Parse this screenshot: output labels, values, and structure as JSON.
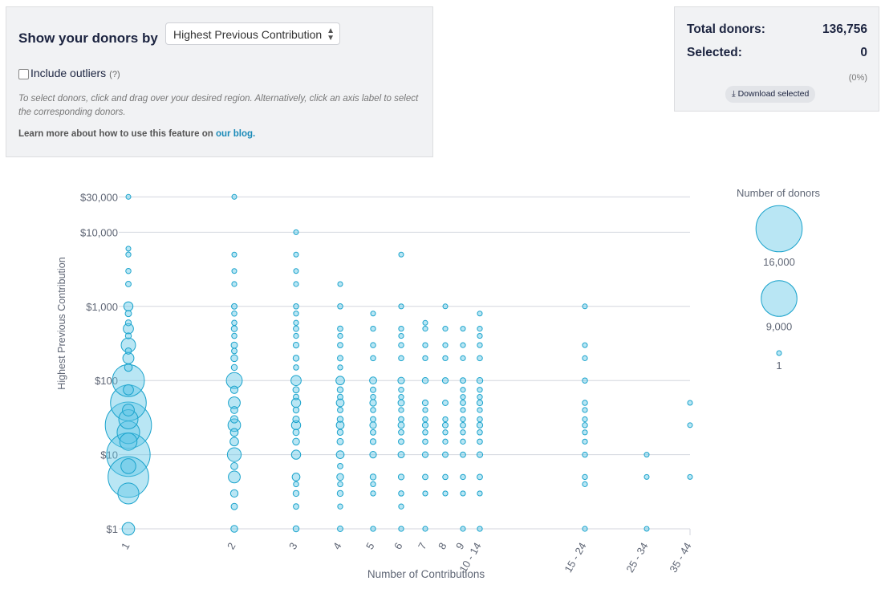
{
  "controls": {
    "title": "Show your donors by",
    "select_value": "Highest Previous Contribution",
    "outliers_label": "Include outliers",
    "outliers_help": "(?)",
    "hint": "To select donors, click and drag over your desired region. Alternatively, click an axis label to select the corresponding donors.",
    "learn_prefix": "Learn more about how to use this feature on ",
    "learn_link": "our blog."
  },
  "summary": {
    "total_label": "Total donors:",
    "total_value": "136,756",
    "selected_label": "Selected:",
    "selected_value": "0",
    "selected_pct": "(0%)",
    "download_label": "Download selected"
  },
  "chart_data": {
    "type": "scatter",
    "xlabel": "Number of Contributions",
    "ylabel": "Highest Previous Contribution",
    "categories": [
      "1",
      "2",
      "3",
      "4",
      "5",
      "6",
      "7",
      "8",
      "9",
      "10 - 14",
      "15 - 24",
      "25 - 34",
      "35 - 44"
    ],
    "y_ticks": [
      {
        "v": 1,
        "label": "$1"
      },
      {
        "v": 10,
        "label": "$10"
      },
      {
        "v": 100,
        "label": "$100"
      },
      {
        "v": 1000,
        "label": "$1,000"
      },
      {
        "v": 10000,
        "label": "$10,000"
      },
      {
        "v": 30000,
        "label": "$30,000"
      }
    ],
    "ylim": [
      1,
      30000
    ],
    "yscale": "log",
    "legend": {
      "title": "Number of donors",
      "sizes": [
        {
          "n": 16000,
          "label": "16,000"
        },
        {
          "n": 9000,
          "label": "9,000"
        },
        {
          "n": 1,
          "label": "1"
        }
      ],
      "placement": "right"
    },
    "points": [
      {
        "x": "1",
        "ys": [
          [
            30000,
            1
          ],
          [
            6000,
            1
          ],
          [
            5000,
            3
          ],
          [
            3000,
            5
          ],
          [
            2000,
            10
          ],
          [
            1000,
            200
          ],
          [
            800,
            30
          ],
          [
            600,
            20
          ],
          [
            500,
            300
          ],
          [
            400,
            20
          ],
          [
            300,
            900
          ],
          [
            250,
            30
          ],
          [
            200,
            400
          ],
          [
            150,
            100
          ],
          [
            100,
            7000
          ],
          [
            75,
            300
          ],
          [
            50,
            9000
          ],
          [
            40,
            500
          ],
          [
            30,
            2000
          ],
          [
            25,
            16000
          ],
          [
            20,
            3000
          ],
          [
            15,
            1500
          ],
          [
            10,
            14000
          ],
          [
            7,
            1000
          ],
          [
            5,
            12000
          ],
          [
            3,
            2500
          ],
          [
            1,
            600
          ]
        ]
      },
      {
        "x": "2",
        "ys": [
          [
            30000,
            1
          ],
          [
            5000,
            1
          ],
          [
            3000,
            1
          ],
          [
            2000,
            2
          ],
          [
            1000,
            10
          ],
          [
            800,
            5
          ],
          [
            600,
            5
          ],
          [
            500,
            20
          ],
          [
            400,
            5
          ],
          [
            300,
            30
          ],
          [
            250,
            10
          ],
          [
            200,
            50
          ],
          [
            150,
            20
          ],
          [
            100,
            1200
          ],
          [
            75,
            80
          ],
          [
            50,
            500
          ],
          [
            40,
            60
          ],
          [
            30,
            80
          ],
          [
            25,
            600
          ],
          [
            20,
            100
          ],
          [
            15,
            150
          ],
          [
            10,
            800
          ],
          [
            7,
            60
          ],
          [
            5,
            500
          ],
          [
            3,
            80
          ],
          [
            2,
            30
          ],
          [
            1,
            50
          ]
        ]
      },
      {
        "x": "3",
        "ys": [
          [
            10000,
            1
          ],
          [
            5000,
            1
          ],
          [
            3000,
            1
          ],
          [
            2000,
            2
          ],
          [
            1000,
            5
          ],
          [
            800,
            3
          ],
          [
            600,
            3
          ],
          [
            500,
            10
          ],
          [
            400,
            3
          ],
          [
            300,
            15
          ],
          [
            200,
            20
          ],
          [
            150,
            5
          ],
          [
            100,
            300
          ],
          [
            75,
            30
          ],
          [
            60,
            10
          ],
          [
            50,
            200
          ],
          [
            40,
            20
          ],
          [
            30,
            40
          ],
          [
            25,
            200
          ],
          [
            20,
            30
          ],
          [
            15,
            50
          ],
          [
            10,
            200
          ],
          [
            5,
            100
          ],
          [
            4,
            5
          ],
          [
            3,
            20
          ],
          [
            2,
            10
          ],
          [
            1,
            20
          ]
        ]
      },
      {
        "x": "4",
        "ys": [
          [
            2000,
            1
          ],
          [
            1000,
            5
          ],
          [
            500,
            8
          ],
          [
            400,
            3
          ],
          [
            300,
            8
          ],
          [
            200,
            10
          ],
          [
            150,
            3
          ],
          [
            100,
            150
          ],
          [
            75,
            20
          ],
          [
            60,
            10
          ],
          [
            50,
            100
          ],
          [
            40,
            10
          ],
          [
            30,
            20
          ],
          [
            25,
            100
          ],
          [
            20,
            20
          ],
          [
            15,
            30
          ],
          [
            10,
            100
          ],
          [
            7,
            8
          ],
          [
            5,
            50
          ],
          [
            4,
            5
          ],
          [
            3,
            20
          ],
          [
            2,
            3
          ],
          [
            1,
            10
          ]
        ]
      },
      {
        "x": "5",
        "ys": [
          [
            800,
            1
          ],
          [
            500,
            3
          ],
          [
            300,
            5
          ],
          [
            200,
            5
          ],
          [
            100,
            60
          ],
          [
            75,
            10
          ],
          [
            60,
            5
          ],
          [
            50,
            40
          ],
          [
            40,
            5
          ],
          [
            30,
            10
          ],
          [
            25,
            40
          ],
          [
            20,
            10
          ],
          [
            15,
            15
          ],
          [
            10,
            40
          ],
          [
            5,
            20
          ],
          [
            4,
            3
          ],
          [
            3,
            3
          ],
          [
            1,
            3
          ]
        ]
      },
      {
        "x": "6",
        "ys": [
          [
            5000,
            1
          ],
          [
            1000,
            2
          ],
          [
            500,
            3
          ],
          [
            400,
            2
          ],
          [
            300,
            5
          ],
          [
            200,
            5
          ],
          [
            100,
            40
          ],
          [
            75,
            5
          ],
          [
            60,
            3
          ],
          [
            50,
            30
          ],
          [
            40,
            3
          ],
          [
            30,
            8
          ],
          [
            25,
            30
          ],
          [
            20,
            8
          ],
          [
            15,
            10
          ],
          [
            10,
            30
          ],
          [
            5,
            15
          ],
          [
            3,
            5
          ],
          [
            2,
            3
          ],
          [
            1,
            3
          ]
        ]
      },
      {
        "x": "7",
        "ys": [
          [
            600,
            1
          ],
          [
            500,
            2
          ],
          [
            300,
            3
          ],
          [
            200,
            3
          ],
          [
            100,
            20
          ],
          [
            50,
            15
          ],
          [
            40,
            2
          ],
          [
            30,
            5
          ],
          [
            25,
            15
          ],
          [
            20,
            5
          ],
          [
            15,
            5
          ],
          [
            10,
            15
          ],
          [
            5,
            8
          ],
          [
            3,
            2
          ],
          [
            1,
            2
          ]
        ]
      },
      {
        "x": "8",
        "ys": [
          [
            1000,
            1
          ],
          [
            500,
            2
          ],
          [
            300,
            2
          ],
          [
            200,
            3
          ],
          [
            100,
            15
          ],
          [
            50,
            10
          ],
          [
            30,
            3
          ],
          [
            25,
            10
          ],
          [
            20,
            3
          ],
          [
            15,
            3
          ],
          [
            10,
            10
          ],
          [
            5,
            5
          ],
          [
            3,
            2
          ]
        ]
      },
      {
        "x": "9",
        "ys": [
          [
            500,
            1
          ],
          [
            300,
            2
          ],
          [
            200,
            2
          ],
          [
            100,
            10
          ],
          [
            75,
            2
          ],
          [
            60,
            2
          ],
          [
            50,
            8
          ],
          [
            40,
            2
          ],
          [
            30,
            3
          ],
          [
            25,
            8
          ],
          [
            20,
            3
          ],
          [
            15,
            3
          ],
          [
            10,
            8
          ],
          [
            5,
            4
          ],
          [
            3,
            2
          ],
          [
            1,
            2
          ]
        ]
      },
      {
        "x": "10 - 14",
        "ys": [
          [
            800,
            1
          ],
          [
            500,
            2
          ],
          [
            400,
            2
          ],
          [
            300,
            3
          ],
          [
            200,
            5
          ],
          [
            100,
            20
          ],
          [
            75,
            3
          ],
          [
            60,
            3
          ],
          [
            50,
            15
          ],
          [
            40,
            3
          ],
          [
            30,
            5
          ],
          [
            25,
            15
          ],
          [
            20,
            5
          ],
          [
            15,
            5
          ],
          [
            10,
            15
          ],
          [
            5,
            8
          ],
          [
            3,
            2
          ],
          [
            1,
            3
          ]
        ]
      },
      {
        "x": "15 - 24",
        "ys": [
          [
            1000,
            1
          ],
          [
            300,
            1
          ],
          [
            200,
            2
          ],
          [
            100,
            5
          ],
          [
            50,
            4
          ],
          [
            40,
            2
          ],
          [
            30,
            2
          ],
          [
            25,
            4
          ],
          [
            20,
            2
          ],
          [
            15,
            2
          ],
          [
            10,
            4
          ],
          [
            5,
            3
          ],
          [
            4,
            2
          ],
          [
            1,
            2
          ]
        ]
      },
      {
        "x": "25 - 34",
        "ys": [
          [
            10,
            1
          ],
          [
            5,
            1
          ],
          [
            1,
            1
          ]
        ]
      },
      {
        "x": "35 - 44",
        "ys": [
          [
            50,
            1
          ],
          [
            25,
            1
          ],
          [
            5,
            1
          ]
        ]
      }
    ]
  }
}
